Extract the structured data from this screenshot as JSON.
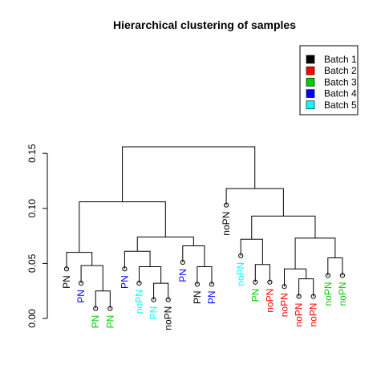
{
  "chart_data": {
    "type": "dendrogram",
    "title": "Hierarchical clustering of samples",
    "y_range": [
      0,
      0.16
    ],
    "y_ticks": [
      {
        "value": 0.0,
        "label": "0.00"
      },
      {
        "value": 0.05,
        "label": "0.05"
      },
      {
        "value": 0.1,
        "label": "0.10"
      },
      {
        "value": 0.15,
        "label": "0.15"
      }
    ],
    "legend": {
      "placement": "top-right",
      "entries": [
        {
          "label": "Batch 1",
          "color": "#000000"
        },
        {
          "label": "Batch 2",
          "color": "#ff0000"
        },
        {
          "label": "Batch 3",
          "color": "#00cd00"
        },
        {
          "label": "Batch 4",
          "color": "#0000ff"
        },
        {
          "label": "Batch 5",
          "color": "#00ffff"
        }
      ]
    },
    "leaves": [
      {
        "label": "PN",
        "batch": 1,
        "height": 0.045
      },
      {
        "label": "PN",
        "batch": 4,
        "height": 0.032
      },
      {
        "label": "PN",
        "batch": 3,
        "height": 0.009
      },
      {
        "label": "PN",
        "batch": 3,
        "height": 0.009
      },
      {
        "label": "PN",
        "batch": 4,
        "height": 0.045
      },
      {
        "label": "noPN",
        "batch": 5,
        "height": 0.032
      },
      {
        "label": "PN",
        "batch": 5,
        "height": 0.017
      },
      {
        "label": "noPN",
        "batch": 1,
        "height": 0.017
      },
      {
        "label": "PN",
        "batch": 4,
        "height": 0.051
      },
      {
        "label": "PN",
        "batch": 1,
        "height": 0.031
      },
      {
        "label": "PN",
        "batch": 4,
        "height": 0.031
      },
      {
        "label": "noPN",
        "batch": 1,
        "height": 0.103
      },
      {
        "label": "noPN",
        "batch": 5,
        "height": 0.057
      },
      {
        "label": "PN",
        "batch": 3,
        "height": 0.033
      },
      {
        "label": "noPN",
        "batch": 2,
        "height": 0.033
      },
      {
        "label": "noPN",
        "batch": 2,
        "height": 0.029
      },
      {
        "label": "noPN",
        "batch": 2,
        "height": 0.02
      },
      {
        "label": "noPN",
        "batch": 2,
        "height": 0.02
      },
      {
        "label": "noPN",
        "batch": 3,
        "height": 0.039
      },
      {
        "label": "noPN",
        "batch": 3,
        "height": 0.039
      }
    ],
    "merges": [
      {
        "children": [
          2,
          3
        ],
        "height": 0.025
      },
      {
        "children": [
          1,
          "m0"
        ],
        "height": 0.048
      },
      {
        "children": [
          0,
          "m1"
        ],
        "height": 0.06
      },
      {
        "children": [
          6,
          7
        ],
        "height": 0.032
      },
      {
        "children": [
          5,
          "m3"
        ],
        "height": 0.047
      },
      {
        "children": [
          4,
          "m4"
        ],
        "height": 0.061
      },
      {
        "children": [
          9,
          10
        ],
        "height": 0.047
      },
      {
        "children": [
          8,
          "m6"
        ],
        "height": 0.066
      },
      {
        "children": [
          "m5",
          "m7"
        ],
        "height": 0.074
      },
      {
        "children": [
          "m2",
          "m8"
        ],
        "height": 0.106
      },
      {
        "children": [
          13,
          14
        ],
        "height": 0.049
      },
      {
        "children": [
          12,
          "m10"
        ],
        "height": 0.072
      },
      {
        "children": [
          16,
          17
        ],
        "height": 0.036
      },
      {
        "children": [
          15,
          "m12"
        ],
        "height": 0.045
      },
      {
        "children": [
          18,
          19
        ],
        "height": 0.055
      },
      {
        "children": [
          "m13",
          "m14"
        ],
        "height": 0.073
      },
      {
        "children": [
          "m11",
          "m15"
        ],
        "height": 0.093
      },
      {
        "children": [
          11,
          "m16"
        ],
        "height": 0.118
      },
      {
        "children": [
          "m9",
          "m17"
        ],
        "height": 0.156
      }
    ]
  }
}
